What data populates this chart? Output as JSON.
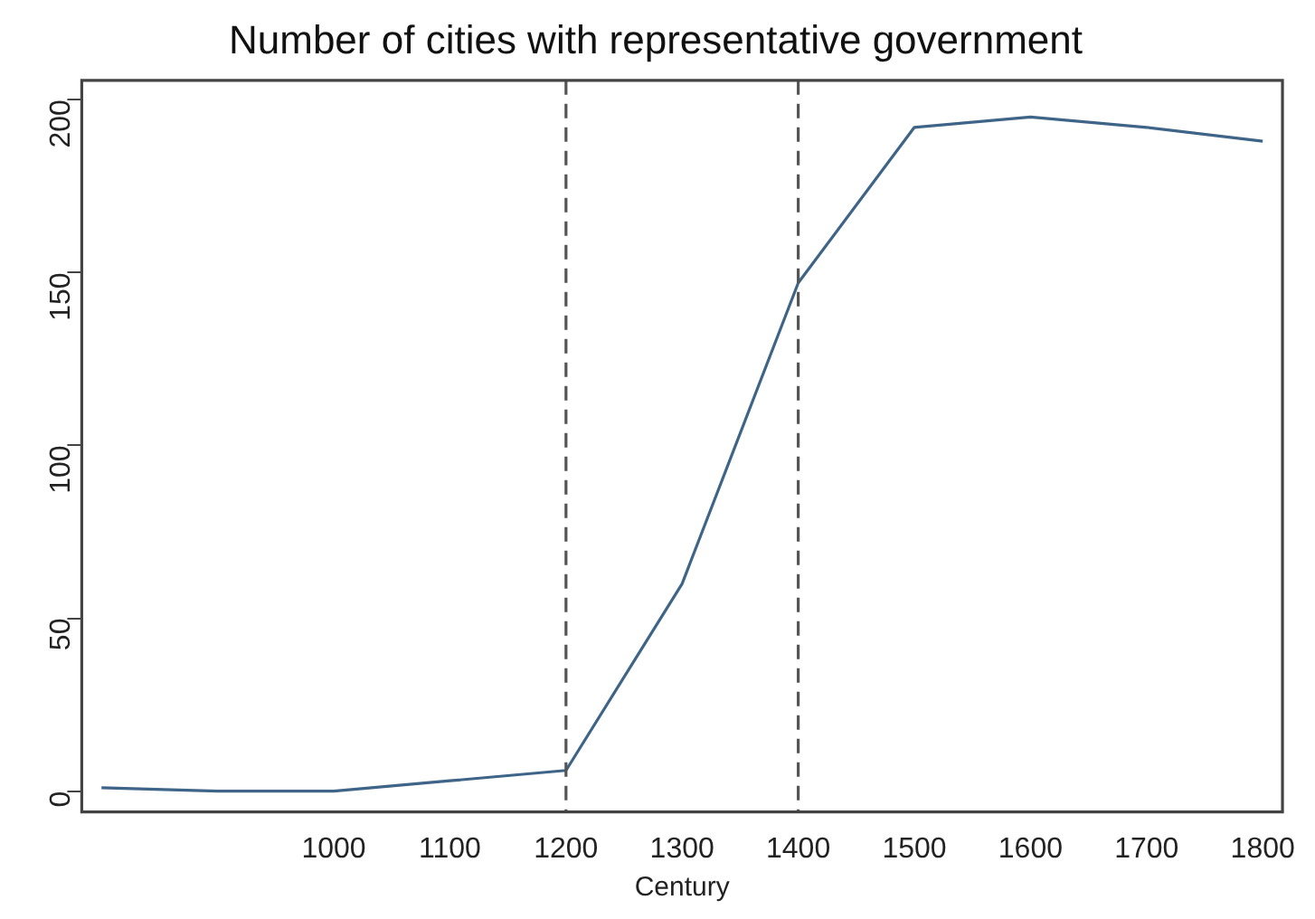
{
  "chart_data": {
    "type": "line",
    "title": "Number of cities with representative government",
    "xlabel": "Century",
    "x": [
      800,
      900,
      1000,
      1100,
      1200,
      1300,
      1400,
      1500,
      1600,
      1700,
      1800
    ],
    "series": [
      {
        "color": "#3e6487",
        "values": [
          1,
          0,
          0,
          3,
          6,
          60,
          147,
          192,
          195,
          192,
          188
        ]
      }
    ],
    "xlim": [
      783,
      1817
    ],
    "xticks": [
      1000,
      1100,
      1200,
      1300,
      1400,
      1500,
      1600,
      1700,
      1800
    ],
    "ylim": [
      -6,
      205.6
    ],
    "yticks": [
      0,
      50,
      100,
      150,
      200
    ],
    "ref_lines": [
      {
        "axis": "x",
        "value": 1200,
        "color": "#555555",
        "line_style": "dashed"
      },
      {
        "axis": "x",
        "value": 1400,
        "color": "#555555",
        "line_style": "dashed"
      }
    ],
    "grid": false,
    "legend": false,
    "marker": "none",
    "line_style": "solid"
  }
}
